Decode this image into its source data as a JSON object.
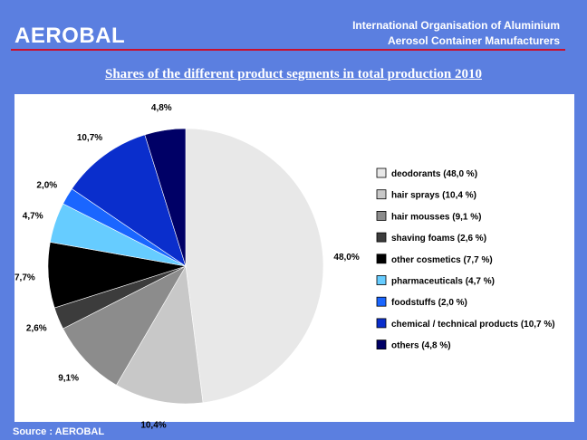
{
  "header": {
    "logo_text": "AEROBAL",
    "org_line1": "International Organisation of Aluminium",
    "org_line2": "Aerosol Container Manufacturers"
  },
  "footer": {
    "source": "Source : AEROBAL"
  },
  "chart_data": {
    "type": "pie",
    "title": "Shares of the different product segments in total production 2010",
    "start_angle_deg": 0,
    "direction": "clockwise",
    "legend_position": "right",
    "slices": [
      {
        "name": "deodorants",
        "value": 48.0,
        "label": "48,0%",
        "legend": "deodorants (48,0 %)",
        "color": "#e8e8e8"
      },
      {
        "name": "hair sprays",
        "value": 10.4,
        "label": "10,4%",
        "legend": "hair sprays (10,4 %)",
        "color": "#c8c8c8"
      },
      {
        "name": "hair mousses",
        "value": 9.1,
        "label": "9,1%",
        "legend": "hair mousses (9,1 %)",
        "color": "#8c8c8c"
      },
      {
        "name": "shaving foams",
        "value": 2.6,
        "label": "2,6%",
        "legend": "shaving foams (2,6 %)",
        "color": "#3c3c3c"
      },
      {
        "name": "other cosmetics",
        "value": 7.7,
        "label": "7,7%",
        "legend": "other cosmetics (7,7 %)",
        "color": "#000000"
      },
      {
        "name": "pharmaceuticals",
        "value": 4.7,
        "label": "4,7%",
        "legend": "pharmaceuticals (4,7 %)",
        "color": "#66ccff"
      },
      {
        "name": "foodstuffs",
        "value": 2.0,
        "label": "2,0%",
        "legend": "foodstuffs (2,0 %)",
        "color": "#1a66ff"
      },
      {
        "name": "chemical / technical products",
        "value": 10.7,
        "label": "10,7%",
        "legend": "chemical / technical products (10,7 %)",
        "color": "#0a2ecc"
      },
      {
        "name": "others",
        "value": 4.8,
        "label": "4,8%",
        "legend": "others (4,8 %)",
        "color": "#000066"
      }
    ]
  }
}
